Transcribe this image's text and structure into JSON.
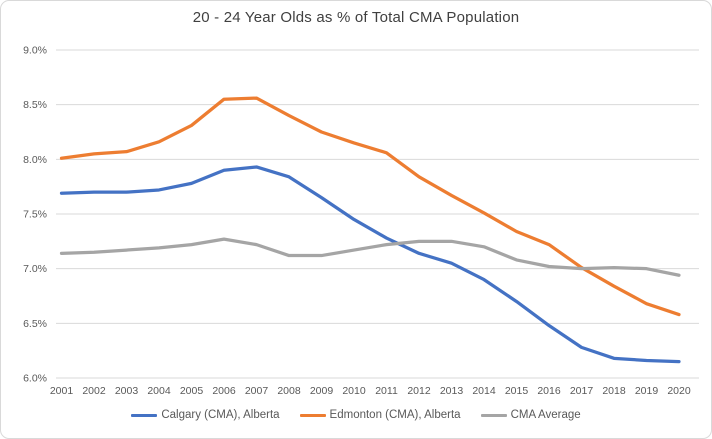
{
  "chart_data": {
    "type": "line",
    "title": "20 - 24 Year Olds as % of Total CMA Population",
    "x": [
      "2001",
      "2002",
      "2003",
      "2004",
      "2005",
      "2006",
      "2007",
      "2008",
      "2009",
      "2010",
      "2011",
      "2012",
      "2013",
      "2014",
      "2015",
      "2016",
      "2017",
      "2018",
      "2019",
      "2020"
    ],
    "series": [
      {
        "name": "Calgary (CMA), Alberta",
        "color": "#4472C4",
        "values": [
          7.69,
          7.7,
          7.7,
          7.72,
          7.78,
          7.9,
          7.93,
          7.84,
          7.65,
          7.45,
          7.28,
          7.14,
          7.05,
          6.9,
          6.7,
          6.48,
          6.28,
          6.18,
          6.16,
          6.15
        ]
      },
      {
        "name": "Edmonton (CMA), Alberta",
        "color": "#ED7D31",
        "values": [
          8.01,
          8.05,
          8.07,
          8.16,
          8.31,
          8.55,
          8.56,
          8.4,
          8.25,
          8.15,
          8.06,
          7.84,
          7.67,
          7.51,
          7.34,
          7.22,
          7.01,
          6.84,
          6.68,
          6.58
        ]
      },
      {
        "name": "CMA Average",
        "color": "#A5A5A5",
        "values": [
          7.14,
          7.15,
          7.17,
          7.19,
          7.22,
          7.27,
          7.22,
          7.12,
          7.12,
          7.17,
          7.22,
          7.25,
          7.25,
          7.2,
          7.08,
          7.02,
          7.0,
          7.01,
          7.0,
          6.94
        ]
      }
    ],
    "ylim": [
      6.0,
      9.0
    ],
    "y_tick_step": 0.5,
    "y_ticks": [
      "9.0%",
      "8.5%",
      "8.0%",
      "7.5%",
      "7.0%",
      "6.5%",
      "6.0%"
    ],
    "grid": "horizontal",
    "legend_position": "bottom",
    "colors": {
      "gridline": "#D9D9D9",
      "axis_text": "#595959",
      "title_text": "#404040"
    }
  }
}
